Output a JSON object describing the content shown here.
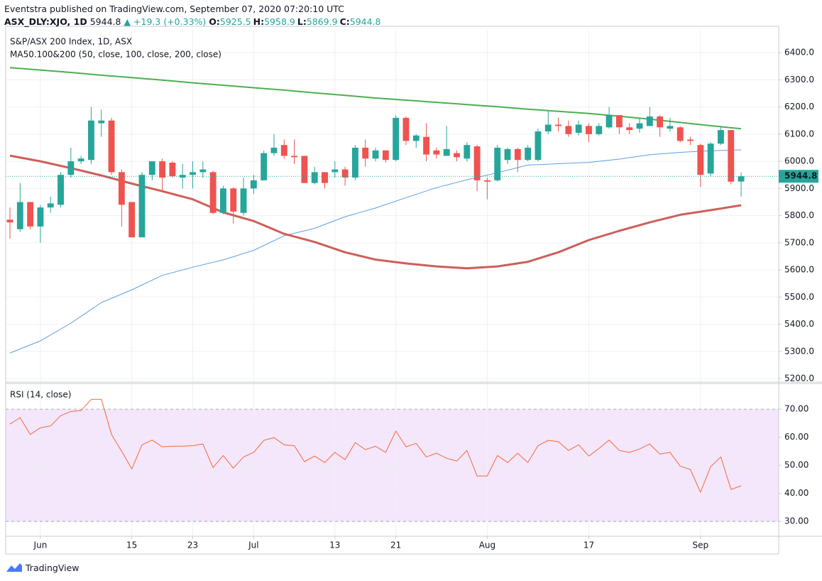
{
  "header": {
    "publisher_line": "Eventstra published on TradingView.com, September 07, 2020 07:20:10 UTC",
    "symbol": "ASX_DLY:XJO, 1D",
    "last": "5944.8",
    "change": "▲ +19.3 (+0.33%)",
    "ohlc": [
      {
        "label": "O:",
        "value": "5925.5"
      },
      {
        "label": "H:",
        "value": "5958.9"
      },
      {
        "label": "L:",
        "value": "5869.9"
      },
      {
        "label": "C:",
        "value": "5944.8"
      }
    ]
  },
  "footer": {
    "brand": "TradingView"
  },
  "chart_data": [
    {
      "type": "candlestick",
      "title": "S&P/ASX 200 Index, 1D, ASX",
      "subtitle": "MA50.100&200 (50, close, 100, close, 200, close)",
      "up_color": "#26a69a",
      "down_color": "#ef5350",
      "xlim": [
        -0.42,
        75.7
      ],
      "ylim": [
        5187,
        6484
      ],
      "yticks": [
        {
          "value": 6400,
          "label": "6400.0"
        },
        {
          "value": 6300,
          "label": "6300.0"
        },
        {
          "value": 6200,
          "label": "6200.0"
        },
        {
          "value": 6100,
          "label": "6100.0"
        },
        {
          "value": 6000,
          "label": "6000.0"
        },
        {
          "value": 5900,
          "label": "5900.0"
        },
        {
          "value": 5800,
          "label": "5800.0"
        },
        {
          "value": 5700,
          "label": "5700.0"
        },
        {
          "value": 5600,
          "label": "5600.0"
        },
        {
          "value": 5500,
          "label": "5500.0"
        },
        {
          "value": 5400,
          "label": "5400.0"
        },
        {
          "value": 5300,
          "label": "5300.0"
        },
        {
          "value": 5200,
          "label": "5200.0"
        }
      ],
      "xticks": [
        {
          "value": 3,
          "label": "Jun"
        },
        {
          "value": 12,
          "label": "15"
        },
        {
          "value": 18,
          "label": "23"
        },
        {
          "value": 24,
          "label": "Jul"
        },
        {
          "value": 32,
          "label": "13"
        },
        {
          "value": 38,
          "label": "21"
        },
        {
          "value": 47,
          "label": "Aug"
        },
        {
          "value": 57,
          "label": "17"
        },
        {
          "value": 68,
          "label": "Sep"
        }
      ],
      "grid": true,
      "last_price": {
        "value": 5944.8,
        "label": "5944.8"
      },
      "open": [
        5785,
        5750,
        5850,
        5760,
        5830,
        5840,
        5950,
        6000,
        6005,
        6140,
        6150,
        5960,
        5850,
        5720,
        5950,
        6000,
        5995,
        5940,
        5950,
        5960,
        5960,
        5810,
        5900,
        5810,
        5900,
        5930,
        6030,
        6060,
        6020,
        6020,
        5920,
        5960,
        5960,
        5970,
        5940,
        6050,
        6010,
        6040,
        6005,
        6160,
        6075,
        6090,
        6040,
        6020,
        6030,
        6010,
        6055,
        5930,
        5930,
        6005,
        6045,
        6005,
        6005,
        6110,
        6135,
        6130,
        6105,
        6130,
        6100,
        6125,
        6170,
        6125,
        6120,
        6130,
        6165,
        6120,
        6125,
        6080,
        6060,
        5955,
        6065,
        6115,
        5925.5
      ],
      "high": [
        5830,
        5920,
        5850,
        5840,
        5870,
        5960,
        6050,
        6020,
        6200,
        6190,
        6160,
        5970,
        5850,
        5960,
        6000,
        6010,
        6000,
        5990,
        6000,
        6000,
        5965,
        5910,
        5905,
        5940,
        5950,
        6040,
        6100,
        6080,
        6080,
        6020,
        5980,
        5960,
        6000,
        5980,
        6060,
        6080,
        6050,
        6040,
        6170,
        6165,
        6100,
        6140,
        6050,
        6130,
        6040,
        6070,
        6060,
        5940,
        6060,
        6050,
        6050,
        6060,
        6120,
        6185,
        6160,
        6150,
        6150,
        6140,
        6140,
        6200,
        6170,
        6140,
        6160,
        6200,
        6170,
        6160,
        6130,
        6090,
        6065,
        6070,
        6130,
        6115,
        5958.9
      ],
      "low": [
        5715,
        5740,
        5750,
        5700,
        5810,
        5830,
        5940,
        5990,
        5990,
        6090,
        5950,
        5760,
        5720,
        5720,
        5930,
        5890,
        5940,
        5900,
        5900,
        5940,
        5805,
        5805,
        5770,
        5800,
        5880,
        5930,
        6020,
        6010,
        5990,
        5920,
        5915,
        5900,
        5940,
        5910,
        5930,
        5980,
        6000,
        5995,
        6000,
        6060,
        6050,
        6000,
        6010,
        6020,
        6000,
        6000,
        5890,
        5860,
        5925,
        5990,
        5960,
        6000,
        6000,
        6100,
        6110,
        6090,
        6095,
        6070,
        6095,
        6120,
        6100,
        6100,
        6105,
        6130,
        6090,
        6110,
        6070,
        6060,
        5905,
        5945,
        6060,
        5915,
        5869.9
      ],
      "close": [
        5775,
        5850,
        5760,
        5830,
        5845,
        5950,
        6000,
        6010,
        6150,
        6150,
        5960,
        5840,
        5720,
        5950,
        6000,
        5940,
        5945,
        5950,
        5960,
        5970,
        5810,
        5900,
        5815,
        5900,
        5930,
        6030,
        6050,
        6020,
        6015,
        5920,
        5960,
        5920,
        5970,
        5940,
        6050,
        6010,
        6040,
        6005,
        6160,
        6075,
        6095,
        6025,
        6025,
        6045,
        6015,
        6060,
        5930,
        5925,
        6050,
        6045,
        6005,
        6050,
        6110,
        6135,
        6130,
        6100,
        6135,
        6100,
        6130,
        6170,
        6125,
        6115,
        6140,
        6165,
        6125,
        6130,
        6075,
        6075,
        5950,
        6065,
        6115,
        5925,
        5944.8
      ],
      "series": [
        {
          "color": "#5d9fe0",
          "x": [
            0,
            3,
            6,
            9,
            12,
            15,
            18,
            21,
            24,
            27,
            30,
            33,
            36,
            39,
            42,
            45,
            48,
            51,
            54,
            57,
            60,
            63,
            66,
            69,
            72
          ],
          "values": [
            5294,
            5339,
            5404,
            5480,
            5527,
            5580,
            5610,
            5637,
            5672,
            5726,
            5753,
            5796,
            5828,
            5866,
            5903,
            5932,
            5958,
            5986,
            5991,
            5996,
            6008,
            6024,
            6033,
            6039,
            6042
          ]
        },
        {
          "color": "#cd5f5a",
          "x": [
            0,
            3,
            6,
            9,
            12,
            15,
            18,
            21,
            24,
            27,
            30,
            33,
            36,
            39,
            42,
            45,
            48,
            51,
            54,
            57,
            60,
            63,
            66,
            69,
            72
          ],
          "values": [
            6021,
            6000,
            5975,
            5948,
            5918,
            5890,
            5860,
            5812,
            5780,
            5733,
            5703,
            5665,
            5638,
            5624,
            5613,
            5606,
            5613,
            5630,
            5665,
            5710,
            5744,
            5775,
            5803,
            5820,
            5838
          ]
        },
        {
          "color": "#4caf50",
          "x": [
            0,
            3,
            6,
            9,
            12,
            15,
            18,
            21,
            24,
            27,
            30,
            33,
            36,
            39,
            42,
            45,
            48,
            51,
            54,
            57,
            60,
            63,
            66,
            69,
            72
          ],
          "values": [
            6345,
            6336,
            6327,
            6317,
            6308,
            6299,
            6289,
            6280,
            6271,
            6262,
            6252,
            6243,
            6233,
            6225,
            6217,
            6209,
            6201,
            6192,
            6184,
            6176,
            6166,
            6155,
            6143,
            6131,
            6120
          ]
        }
      ]
    },
    {
      "type": "line",
      "title": "RSI (14, close)",
      "ylim": [
        24.7,
        78.9
      ],
      "yticks": [
        {
          "value": 70,
          "label": "70.00"
        },
        {
          "value": 60,
          "label": "60.00"
        },
        {
          "value": 50,
          "label": "50.00"
        },
        {
          "value": 40,
          "label": "40.00"
        },
        {
          "value": 30,
          "label": "30.00"
        }
      ],
      "band": [
        30,
        70
      ],
      "band_color": "#f4e6fb",
      "grid": true,
      "series": [
        {
          "color": "#f26b3a",
          "values": [
            64.7,
            67,
            61,
            63.4,
            64,
            67.7,
            69.2,
            69.5,
            73.5,
            73.5,
            61,
            55,
            48.7,
            57.3,
            59,
            56.6,
            56.8,
            56.8,
            57,
            57.6,
            49.2,
            53.5,
            49,
            53,
            54.6,
            58.9,
            59.9,
            57.3,
            57,
            51.3,
            53.3,
            51,
            54.6,
            52,
            58.1,
            55.6,
            56.8,
            54.6,
            62.2,
            56.6,
            57.8,
            53,
            54.3,
            52.5,
            51.5,
            55.3,
            46.2,
            46.2,
            53.5,
            51,
            54.3,
            51,
            57,
            58.9,
            58.4,
            55.3,
            57.3,
            53.3,
            56,
            59,
            55.3,
            54.6,
            55.8,
            57.6,
            54,
            54.6,
            49.7,
            48.5,
            40.4,
            49.5,
            53,
            41.4,
            42.7
          ]
        }
      ]
    }
  ]
}
